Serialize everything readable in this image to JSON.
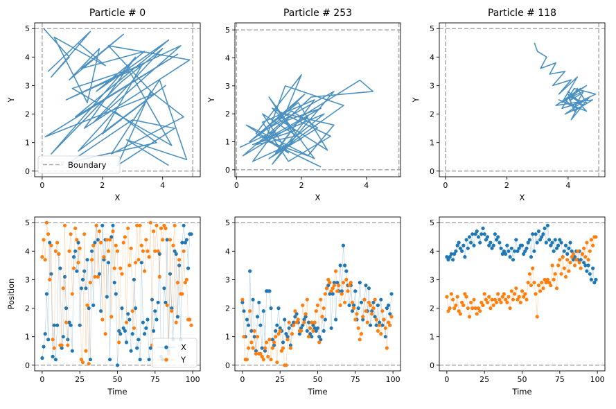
{
  "colors": {
    "x": "#1f77b4",
    "y": "#ff7f0e",
    "traj": "#4a90c0",
    "boundary": "#aaaaaa"
  },
  "chart_data": [
    {
      "type": "line",
      "title": "Particle # 0",
      "xlabel": "X",
      "ylabel": "Y",
      "xlim": [
        -0.25,
        5.25
      ],
      "ylim": [
        -0.2,
        5.2
      ],
      "xticks": [
        0,
        2,
        4
      ],
      "yticks": [
        0,
        1,
        2,
        3,
        4,
        5
      ],
      "boundary": [
        0,
        5
      ],
      "legend": {
        "entries": [
          "Boundary"
        ],
        "placement": "lower-left"
      },
      "trajectory": {
        "x": [
          0.05,
          0.9,
          0.3,
          1.6,
          0.2,
          1.2,
          2.1,
          0.4,
          1.5,
          1.9,
          0.9,
          2.7,
          1.3,
          3.4,
          1.8,
          4.2,
          1.1,
          4.5,
          0.1,
          3.7,
          2.2,
          4.9,
          1.4,
          3.1,
          0.3,
          2.6,
          4.0,
          1.7,
          4.6,
          0.8,
          2.9,
          4.3,
          1.0,
          3.3,
          2.0,
          4.1,
          1.2,
          2.4,
          3.8,
          0.9,
          3.0,
          4.4,
          2.5,
          3.6,
          4.7,
          2.3,
          3.9,
          4.8,
          2.8,
          4.2
        ],
        "y": [
          5.0,
          4.0,
          3.3,
          4.9,
          3.5,
          4.5,
          3.7,
          4.7,
          2.4,
          4.3,
          3.2,
          4.8,
          3.6,
          4.2,
          2.8,
          4.6,
          1.9,
          4.1,
          1.2,
          2.7,
          4.4,
          3.9,
          1.5,
          4.0,
          0.6,
          3.1,
          4.3,
          1.7,
          4.4,
          2.5,
          3.5,
          0.9,
          2.9,
          3.7,
          1.3,
          3.0,
          0.7,
          2.1,
          1.0,
          0.3,
          1.8,
          1.5,
          0.2,
          2.8,
          1.9,
          0.6,
          3.2,
          0.4,
          1.1,
          0.2
        ]
      }
    },
    {
      "type": "line",
      "title": "Particle # 253",
      "xlabel": "X",
      "ylabel": "Y",
      "xlim": [
        -0.05,
        5.05
      ],
      "ylim": [
        -0.25,
        5.25
      ],
      "xticks": [
        0,
        2,
        4
      ],
      "yticks": [
        0,
        1,
        2,
        3,
        4,
        5
      ],
      "boundary": [
        0,
        5
      ],
      "trajectory": {
        "x": [
          0.1,
          1.2,
          0.5,
          2.0,
          0.8,
          1.6,
          0.3,
          2.4,
          1.0,
          1.8,
          0.6,
          2.6,
          1.4,
          0.2,
          2.2,
          1.1,
          3.0,
          0.7,
          1.9,
          2.8,
          1.3,
          2.1,
          0.4,
          1.7,
          2.5,
          1.0,
          3.3,
          1.5,
          0.9,
          2.3,
          4.2,
          3.8,
          2.0,
          1.2,
          2.7,
          0.5,
          1.8,
          1.1,
          2.9,
          1.6,
          0.8,
          2.4,
          1.3,
          0.6,
          2.0,
          1.5,
          3.0,
          2.2,
          1.0,
          2.6
        ],
        "y": [
          0.8,
          1.4,
          0.3,
          1.1,
          2.0,
          0.6,
          1.6,
          0.4,
          2.6,
          1.2,
          0.9,
          2.2,
          1.7,
          0.5,
          1.9,
          0.2,
          2.8,
          1.3,
          2.4,
          0.7,
          1.8,
          2.7,
          1.0,
          2.1,
          1.5,
          0.4,
          2.3,
          3.0,
          1.1,
          2.6,
          2.8,
          3.2,
          1.9,
          0.6,
          2.0,
          0.9,
          1.4,
          2.2,
          1.2,
          0.3,
          1.7,
          2.5,
          0.8,
          1.3,
          3.4,
          2.0,
          1.6,
          0.5,
          1.0,
          0.1
        ]
      }
    },
    {
      "type": "line",
      "title": "Particle # 118",
      "xlabel": "X",
      "ylabel": "Y",
      "xlim": [
        -0.2,
        5.2
      ],
      "ylim": [
        -0.2,
        5.2
      ],
      "xticks": [
        0,
        2,
        4
      ],
      "yticks": [
        0,
        1,
        2,
        3,
        4,
        5
      ],
      "boundary": [
        0,
        5
      ],
      "trajectory": {
        "x": [
          2.9,
          3.0,
          3.3,
          3.1,
          3.6,
          3.4,
          3.9,
          3.5,
          4.1,
          3.7,
          4.3,
          3.8,
          4.6,
          4.0,
          4.4,
          3.6,
          4.8,
          4.2,
          4.0,
          4.5,
          3.9,
          4.7,
          4.1,
          4.3,
          3.7,
          4.6,
          4.0,
          4.4,
          3.8,
          4.2,
          4.9,
          4.1,
          3.9,
          4.5,
          4.2,
          4.0,
          4.6,
          4.3,
          4.1,
          4.4
        ],
        "y": [
          4.5,
          4.2,
          4.0,
          3.6,
          3.8,
          3.4,
          3.5,
          3.0,
          3.2,
          2.7,
          3.3,
          2.4,
          3.0,
          2.6,
          2.9,
          2.3,
          2.5,
          2.1,
          2.7,
          2.3,
          2.0,
          2.6,
          1.8,
          2.2,
          2.5,
          2.1,
          2.8,
          2.4,
          2.2,
          2.9,
          2.7,
          2.3,
          2.5,
          2.8,
          2.2,
          2.6,
          2.4,
          2.9,
          2.5,
          2.7
        ]
      }
    },
    {
      "type": "scatter",
      "title": "",
      "xlabel": "Time",
      "ylabel": "Position",
      "xlim": [
        -5,
        105
      ],
      "ylim": [
        -0.2,
        5.2
      ],
      "xticks": [
        0,
        25,
        50,
        75,
        100
      ],
      "yticks": [
        0,
        1,
        2,
        3,
        4,
        5
      ],
      "boundary": [
        0,
        5
      ],
      "legend": {
        "entries": [
          "X",
          "Y"
        ],
        "placement": "lower-right"
      },
      "series": [
        {
          "name": "X",
          "values": [
            0.25,
            0.65,
            1.1,
            2.5,
            0.9,
            4.3,
            3.2,
            0.3,
            1.4,
            0.2,
            1.4,
            3.9,
            3.4,
            0.6,
            1.0,
            3.1,
            2.0,
            0.9,
            1.5,
            1.4,
            0.5,
            3.8,
            4.0,
            3.3,
            4.3,
            1.4,
            2.7,
            3.0,
            3.3,
            2.7,
            3.7,
            2.0,
            0.2,
            4.0,
            2.1,
            4.3,
            4.9,
            4.4,
            3.2,
            1.9,
            4.9,
            3.7,
            4.4,
            2.4,
            3.6,
            0.2,
            4.5,
            4.9,
            2.9,
            2.5,
            0.0,
            1.2,
            1.1,
            2.0,
            1.3,
            1.2,
            0.8,
            1.8,
            1.6,
            0.5,
            1.1,
            3.0,
            2.0,
            0.6,
            0.9,
            0.2,
            3.6,
            1.5,
            1.1,
            1.3,
            1.6,
            0.2,
            0.6,
            2.3,
            1.2,
            1.9,
            1.6,
            2.2,
            3.9,
            0.3,
            0.2,
            2.7,
            2.2,
            4.4,
            0.5,
            3.2,
            2.0,
            0.9,
            4.0,
            3.9,
            1.7,
            3.5,
            0.9,
            4.3,
            4.9,
            4.3,
            4.4,
            3.4,
            4.6,
            4.6
          ]
        },
        {
          "name": "Y",
          "values": [
            3.8,
            4.4,
            3.7,
            5.0,
            4.6,
            3.0,
            4.2,
            0.9,
            0.6,
            4.0,
            4.3,
            3.9,
            0.7,
            0.7,
            2.7,
            4.9,
            1.5,
            0.7,
            4.0,
            4.6,
            2.5,
            3.4,
            4.8,
            4.4,
            3.6,
            4.1,
            0.2,
            0.1,
            4.6,
            0.5,
            2.1,
            0.05,
            2.9,
            3.7,
            4.2,
            3.1,
            4.9,
            3.1,
            4.7,
            4.3,
            1.6,
            3.8,
            1.1,
            4.4,
            4.0,
            4.4,
            1.7,
            4.7,
            3.4,
            4.2,
            4.0,
            0.8,
            3.4,
            3.2,
            4.3,
            4.5,
            1.5,
            4.8,
            3.5,
            4.1,
            1.9,
            1.3,
            3.6,
            4.9,
            3.7,
            4.9,
            4.2,
            4.0,
            3.3,
            4.4,
            4.0,
            3.8,
            5.0,
            0.7,
            4.7,
            4.0,
            4.9,
            4.0,
            3.1,
            4.8,
            4.4,
            4.9,
            4.8,
            2.1,
            0.4,
            4.4,
            1.9,
            4.2,
            4.9,
            1.5,
            2.9,
            3.7,
            2.5,
            2.5,
            4.0,
            2.9,
            3.0,
            1.6,
            1.6,
            1.4
          ]
        }
      ]
    },
    {
      "type": "scatter",
      "title": "",
      "xlabel": "Time",
      "ylabel": "",
      "xlim": [
        -5,
        105
      ],
      "ylim": [
        -0.2,
        5.2
      ],
      "xticks": [
        0,
        25,
        50,
        75,
        100
      ],
      "yticks": [
        0,
        1,
        2,
        3,
        4,
        5
      ],
      "boundary": [
        0,
        5
      ],
      "series": [
        {
          "name": "X",
          "values": [
            2.2,
            1.9,
            1.0,
            1.6,
            1.4,
            3.3,
            1.2,
            2.3,
            1.0,
            0.5,
            1.7,
            2.2,
            1.4,
            0.6,
            1.9,
            0.5,
            2.6,
            2.6,
            2.6,
            2.0,
            0.9,
            0.7,
            1.2,
            1.4,
            2.0,
            1.3,
            1.2,
            0.8,
            1.6,
            1.1,
            1.0,
            1.3,
            0.7,
            1.4,
            1.5,
            1.7,
            1.8,
            1.5,
            1.1,
            1.3,
            1.4,
            1.6,
            1.7,
            1.2,
            1.5,
            1.1,
            1.0,
            1.4,
            1.3,
            1.2,
            1.3,
            1.0,
            0.9,
            1.7,
            1.2,
            1.6,
            2.7,
            2.8,
            2.5,
            1.3,
            2.5,
            2.9,
            1.6,
            2.9,
            2.6,
            3.5,
            2.6,
            4.2,
            3.5,
            3.3,
            2.8,
            2.1,
            2.8,
            1.9,
            2.1,
            2.6,
            1.6,
            2.0,
            2.9,
            2.2,
            1.6,
            2.3,
            2.8,
            1.9,
            2.7,
            1.4,
            1.9,
            2.2,
            1.7,
            1.4,
            2.1,
            1.5,
            2.3,
            1.4,
            1.6,
            1.0,
            2.0,
            2.1,
            1.8,
            2.5
          ]
        },
        {
          "name": "Y",
          "values": [
            2.3,
            1.0,
            0.2,
            0.2,
            0.6,
            1.9,
            0.8,
            0.6,
            1.2,
            0.4,
            1.0,
            0.4,
            0.4,
            0.3,
            0.2,
            0.6,
            0.8,
            0.3,
            0.9,
            0.2,
            0.6,
            0.8,
            1.0,
            0.1,
            1.1,
            1.2,
            0.5,
            0.6,
            0.0,
            0.0,
            0.9,
            1.5,
            0.6,
            1.1,
            1.4,
            1.9,
            1.5,
            1.6,
            1.2,
            1.2,
            2.1,
            1.5,
            1.8,
            2.3,
            1.0,
            1.3,
            1.5,
            1.2,
            1.5,
            1.9,
            2.1,
            0.8,
            2.3,
            1.7,
            2.0,
            2.5,
            2.7,
            3.0,
            2.9,
            2.6,
            2.7,
            2.8,
            3.3,
            2.6,
            2.8,
            2.1,
            2.5,
            2.9,
            2.2,
            3.0,
            2.6,
            2.8,
            2.9,
            2.2,
            2.0,
            1.6,
            1.8,
            1.3,
            0.9,
            1.1,
            1.7,
            2.3,
            1.9,
            1.5,
            2.2,
            2.1,
            1.8,
            2.0,
            2.3,
            1.6,
            1.2,
            1.4,
            1.1,
            1.9,
            1.6,
            1.3,
            0.6,
            1.5,
            1.4,
            1.7
          ]
        }
      ]
    },
    {
      "type": "scatter",
      "title": "",
      "xlabel": "Time",
      "ylabel": "",
      "xlim": [
        -5,
        105
      ],
      "ylim": [
        -0.2,
        5.2
      ],
      "xticks": [
        0,
        25,
        50,
        75,
        100
      ],
      "yticks": [
        0,
        1,
        2,
        3,
        4,
        5
      ],
      "boundary": [
        0,
        5
      ],
      "series": [
        {
          "name": "X",
          "values": [
            3.8,
            3.7,
            3.8,
            3.9,
            3.7,
            3.9,
            4.0,
            4.2,
            4.3,
            4.1,
            4.0,
            4.2,
            3.8,
            4.4,
            4.1,
            4.5,
            4.3,
            4.6,
            4.2,
            4.6,
            4.7,
            4.5,
            4.3,
            4.6,
            4.8,
            4.6,
            4.4,
            4.5,
            4.2,
            4.3,
            4.1,
            4.2,
            4.6,
            4.4,
            4.5,
            4.3,
            4.1,
            3.9,
            4.0,
            3.9,
            4.2,
            4.0,
            3.8,
            4.1,
            3.7,
            4.0,
            4.4,
            4.0,
            4.1,
            4.2,
            4.2,
            3.9,
            4.0,
            4.1,
            4.3,
            4.4,
            3.8,
            4.6,
            4.0,
            4.6,
            4.3,
            4.7,
            4.4,
            4.5,
            4.6,
            4.8,
            4.3,
            4.9,
            4.4,
            4.2,
            4.3,
            4.0,
            4.4,
            4.1,
            4.2,
            4.4,
            4.3,
            3.8,
            4.0,
            4.2,
            3.9,
            4.1,
            4.3,
            4.0,
            3.7,
            3.8,
            4.0,
            3.7,
            4.0,
            3.7,
            3.9,
            3.6,
            3.5,
            3.3,
            3.5,
            3.2,
            3.0,
            3.4,
            2.9,
            3.0
          ]
        },
        {
          "name": "Y",
          "values": [
            2.4,
            1.9,
            2.0,
            2.5,
            2.3,
            2.0,
            2.1,
            2.4,
            1.9,
            1.8,
            2.2,
            2.1,
            2.5,
            2.4,
            2.0,
            1.7,
            2.2,
            2.0,
            2.3,
            2.0,
            1.8,
            2.0,
            1.9,
            2.2,
            2.1,
            2.5,
            2.3,
            2.2,
            2.4,
            2.0,
            2.3,
            2.1,
            2.3,
            2.2,
            2.5,
            2.3,
            2.2,
            2.4,
            2.5,
            2.3,
            2.2,
            2.4,
            2.0,
            2.6,
            2.3,
            2.5,
            2.7,
            2.3,
            2.4,
            2.2,
            2.6,
            2.4,
            2.5,
            2.3,
            2.9,
            3.2,
            2.8,
            3.4,
            2.9,
            2.5,
            1.7,
            2.8,
            2.6,
            2.9,
            2.7,
            3.0,
            2.9,
            3.0,
            2.9,
            2.8,
            3.5,
            3.0,
            3.2,
            2.7,
            3.5,
            3.7,
            3.2,
            3.8,
            3.4,
            3.1,
            3.7,
            3.3,
            3.6,
            3.8,
            3.9,
            3.5,
            3.7,
            4.0,
            3.6,
            3.4,
            3.9,
            4.1,
            3.8,
            4.3,
            3.7,
            4.0,
            4.4,
            4.2,
            4.5,
            4.5
          ]
        }
      ]
    }
  ]
}
